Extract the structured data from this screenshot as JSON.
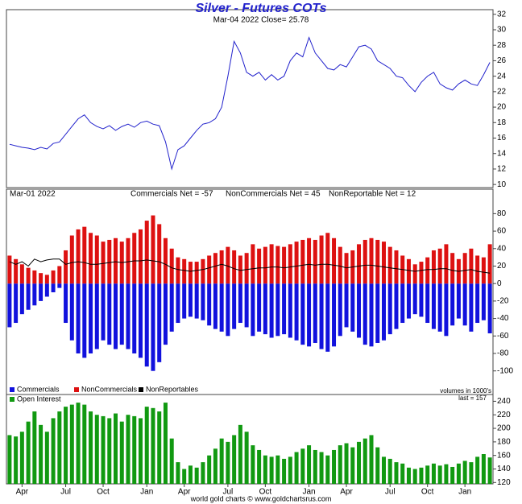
{
  "chart_data": [
    {
      "type": "line",
      "title": "Silver - Futures COTs",
      "subtitle": "Mar-04  2022   Close= 25.78",
      "color": "#2222cc",
      "ylim": [
        9.6,
        32.6
      ],
      "yticks": [
        10,
        12,
        14,
        16,
        18,
        20,
        22,
        24,
        26,
        28,
        30,
        32
      ],
      "values": [
        15.2,
        15.0,
        14.8,
        14.7,
        14.5,
        14.8,
        14.6,
        15.3,
        15.5,
        16.5,
        17.5,
        18.5,
        19.0,
        18.0,
        17.5,
        17.2,
        17.6,
        17.0,
        17.5,
        17.8,
        17.4,
        18.0,
        18.2,
        17.8,
        17.6,
        15.5,
        12.0,
        14.5,
        15.0,
        16.0,
        17.0,
        17.8,
        18.0,
        18.5,
        20.0,
        24.0,
        28.5,
        27.0,
        24.5,
        24.0,
        24.5,
        23.5,
        24.2,
        23.5,
        24.0,
        26.0,
        27.0,
        26.5,
        29.0,
        27.0,
        26.0,
        25.0,
        24.8,
        25.5,
        25.2,
        26.5,
        27.8,
        28.0,
        27.5,
        26.0,
        25.5,
        25.0,
        24.0,
        23.8,
        22.8,
        22.0,
        23.2,
        24.0,
        24.5,
        23.0,
        22.5,
        22.2,
        23.0,
        23.5,
        23.0,
        22.8,
        24.2,
        25.78
      ]
    },
    {
      "type": "bar",
      "annotations": [
        "Mar-01  2022",
        "Commercials Net = -57",
        "NonCommercials Net = 45",
        "NonReportable Net = 12"
      ],
      "ylim": [
        -127,
        108
      ],
      "yticks": [
        -100,
        -80,
        -60,
        -40,
        -20,
        0,
        20,
        40,
        60,
        80
      ],
      "series": [
        {
          "name": "Commercials",
          "color": "#1111dd",
          "values": [
            -50,
            -45,
            -35,
            -30,
            -25,
            -20,
            -15,
            -10,
            -5,
            -45,
            -65,
            -80,
            -85,
            -80,
            -75,
            -65,
            -70,
            -75,
            -70,
            -75,
            -80,
            -85,
            -95,
            -100,
            -90,
            -70,
            -55,
            -45,
            -40,
            -38,
            -40,
            -42,
            -48,
            -52,
            -55,
            -60,
            -52,
            -45,
            -50,
            -60,
            -55,
            -58,
            -62,
            -60,
            -58,
            -62,
            -65,
            -70,
            -72,
            -68,
            -75,
            -78,
            -72,
            -60,
            -50,
            -55,
            -62,
            -70,
            -72,
            -68,
            -65,
            -58,
            -52,
            -45,
            -40,
            -35,
            -38,
            -45,
            -52,
            -55,
            -60,
            -48,
            -40,
            -48,
            -55,
            -45,
            -42,
            -57
          ]
        },
        {
          "name": "NonCommercials",
          "color": "#dd1111",
          "values": [
            32,
            28,
            22,
            18,
            15,
            12,
            10,
            15,
            20,
            38,
            55,
            62,
            65,
            58,
            55,
            48,
            50,
            52,
            48,
            52,
            58,
            62,
            72,
            78,
            68,
            52,
            40,
            30,
            28,
            25,
            25,
            28,
            32,
            35,
            38,
            42,
            38,
            32,
            35,
            45,
            40,
            42,
            45,
            43,
            42,
            45,
            48,
            50,
            52,
            50,
            55,
            58,
            52,
            42,
            35,
            38,
            45,
            50,
            52,
            50,
            48,
            42,
            38,
            32,
            28,
            22,
            25,
            30,
            38,
            40,
            45,
            35,
            28,
            35,
            40,
            32,
            30,
            45
          ]
        },
        {
          "name": "NonReportables",
          "color": "#000000",
          "type": "line",
          "values": [
            25,
            22,
            25,
            20,
            28,
            25,
            27,
            28,
            28,
            22,
            24,
            25,
            24,
            22,
            22,
            23,
            24,
            25,
            24,
            25,
            26,
            26,
            27,
            26,
            25,
            22,
            18,
            16,
            15,
            14,
            15,
            16,
            18,
            20,
            22,
            20,
            17,
            15,
            16,
            17,
            18,
            18,
            19,
            19,
            18,
            19,
            20,
            21,
            22,
            21,
            22,
            22,
            21,
            20,
            18,
            19,
            20,
            21,
            21,
            20,
            19,
            18,
            17,
            16,
            15,
            14,
            15,
            16,
            16,
            17,
            17,
            15,
            14,
            15,
            16,
            14,
            13,
            12
          ]
        }
      ]
    },
    {
      "type": "bar",
      "annotations": [
        "volumes in 1000's",
        "last = 157"
      ],
      "ylim": [
        118,
        250
      ],
      "yticks": [
        120,
        140,
        160,
        180,
        200,
        220,
        240
      ],
      "categories": [
        null,
        null,
        "Apr",
        null,
        null,
        null,
        null,
        null,
        null,
        "Jul",
        null,
        null,
        null,
        null,
        null,
        "Oct",
        null,
        null,
        null,
        null,
        null,
        null,
        "Jan",
        null,
        null,
        null,
        null,
        null,
        "Apr",
        null,
        null,
        null,
        null,
        null,
        null,
        "Jul",
        null,
        null,
        null,
        null,
        null,
        "Oct",
        null,
        null,
        null,
        null,
        null,
        null,
        "Jan",
        null,
        null,
        null,
        null,
        null,
        "Apr",
        null,
        null,
        null,
        null,
        null,
        null,
        "Jul",
        null,
        null,
        null,
        null,
        null,
        "Oct",
        null,
        null,
        null,
        null,
        null,
        "Jan",
        null,
        null,
        null,
        null
      ],
      "series": [
        {
          "name": "Open Interest",
          "color": "#119911",
          "values": [
            190,
            188,
            195,
            210,
            225,
            205,
            195,
            215,
            225,
            232,
            235,
            238,
            235,
            225,
            220,
            218,
            215,
            222,
            210,
            220,
            218,
            215,
            232,
            230,
            225,
            238,
            185,
            150,
            140,
            145,
            142,
            150,
            160,
            170,
            185,
            180,
            190,
            205,
            195,
            175,
            168,
            160,
            158,
            160,
            155,
            158,
            165,
            170,
            175,
            168,
            165,
            160,
            168,
            175,
            178,
            172,
            180,
            185,
            190,
            172,
            158,
            155,
            150,
            148,
            142,
            140,
            142,
            145,
            148,
            145,
            147,
            143,
            148,
            152,
            150,
            158,
            162,
            157
          ]
        }
      ]
    }
  ],
  "footer": "world gold charts © www.goldchartsrus.com"
}
